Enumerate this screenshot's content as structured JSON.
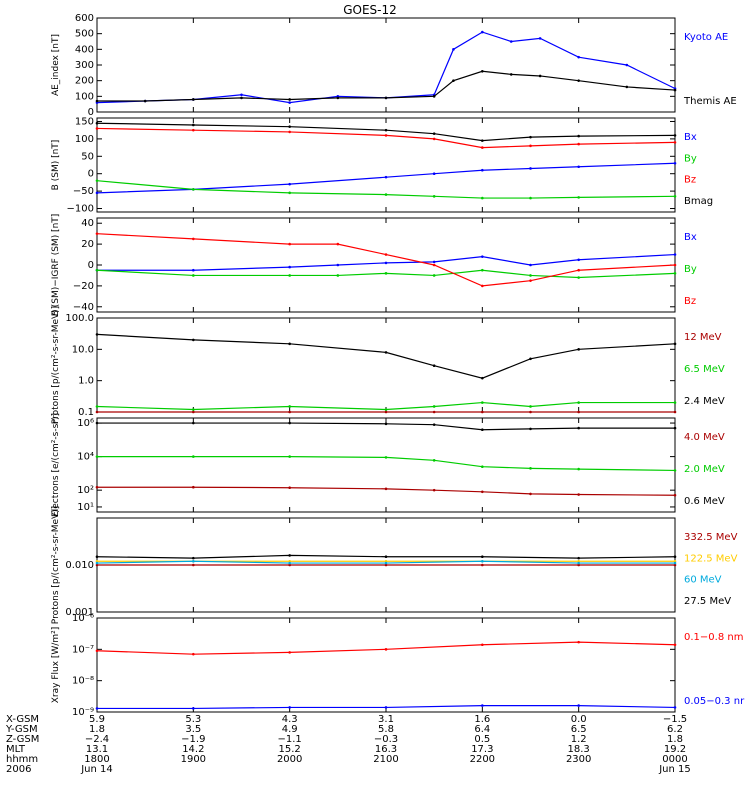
{
  "title": "GOES-12",
  "colors": {
    "blue": "#0000ff",
    "black": "#000000",
    "red": "#ff0000",
    "green": "#00cc00",
    "darkred": "#aa0000",
    "cyan": "#00aadd",
    "yellow": "#ffcc00"
  },
  "chart_data": [
    {
      "type": "line",
      "ylabel": "AE_index [nT]",
      "ylim": [
        0,
        600
      ],
      "yticks": [
        "600",
        "500",
        "400",
        "300",
        "200",
        "100",
        "0"
      ],
      "ytick_values": [
        600,
        500,
        400,
        300,
        200,
        100,
        0
      ],
      "x": [
        0,
        0.5,
        1,
        1.5,
        2,
        2.5,
        3,
        3.5,
        3.7,
        4,
        4.3,
        4.6,
        5,
        5.5,
        6
      ],
      "series": [
        {
          "name": "Kyoto AE",
          "color": "blue",
          "values": [
            60,
            70,
            80,
            110,
            60,
            100,
            90,
            110,
            400,
            510,
            450,
            470,
            350,
            300,
            150
          ]
        },
        {
          "name": "Themis AE",
          "color": "black",
          "values": [
            70,
            70,
            80,
            90,
            80,
            90,
            90,
            100,
            200,
            260,
            240,
            230,
            200,
            160,
            140
          ]
        }
      ]
    },
    {
      "type": "line",
      "ylabel": "B (SM) [nT]",
      "ylim": [
        -110,
        160
      ],
      "yticks": [
        "150",
        "100",
        "50",
        "0",
        "−50",
        "−100"
      ],
      "ytick_values": [
        150,
        100,
        50,
        0,
        -50,
        -100
      ],
      "x": [
        0,
        1,
        2,
        3,
        3.5,
        4,
        4.5,
        5,
        6
      ],
      "series": [
        {
          "name": "Bx",
          "color": "blue",
          "values": [
            -55,
            -45,
            -30,
            -10,
            0,
            10,
            15,
            20,
            30
          ]
        },
        {
          "name": "By",
          "color": "green",
          "values": [
            -20,
            -45,
            -55,
            -60,
            -65,
            -70,
            -70,
            -68,
            -65
          ]
        },
        {
          "name": "Bz",
          "color": "red",
          "values": [
            130,
            125,
            120,
            110,
            100,
            75,
            80,
            85,
            90
          ]
        },
        {
          "name": "Bmag",
          "color": "black",
          "values": [
            145,
            140,
            135,
            125,
            115,
            95,
            105,
            108,
            110
          ]
        }
      ]
    },
    {
      "type": "line",
      "ylabel": "B (SM)−IGRF (SM) [nT]",
      "ylim": [
        -45,
        45
      ],
      "yticks": [
        "40",
        "20",
        "0",
        "−20",
        "−40"
      ],
      "ytick_values": [
        40,
        20,
        0,
        -20,
        -40
      ],
      "x": [
        0,
        1,
        2,
        2.5,
        3,
        3.5,
        4,
        4.5,
        5,
        6
      ],
      "series": [
        {
          "name": "Bx",
          "color": "blue",
          "values": [
            -5,
            -5,
            -2,
            0,
            2,
            3,
            8,
            0,
            5,
            10
          ]
        },
        {
          "name": "By",
          "color": "green",
          "values": [
            -5,
            -10,
            -10,
            -10,
            -8,
            -10,
            -5,
            -10,
            -12,
            -8
          ]
        },
        {
          "name": "Bz",
          "color": "red",
          "values": [
            30,
            25,
            20,
            20,
            10,
            0,
            -20,
            -15,
            -5,
            0
          ]
        }
      ]
    },
    {
      "type": "line",
      "ylabel": "Protons [p/(cm²-s-sr-MeV)]",
      "scale": "log",
      "ylim": [
        0.1,
        100
      ],
      "yticks": [
        "100.0",
        "10.0",
        "1.0",
        "0.1"
      ],
      "ytick_values": [
        100,
        10,
        1,
        0.1
      ],
      "x": [
        0,
        1,
        2,
        3,
        3.5,
        4,
        4.5,
        5,
        6
      ],
      "series": [
        {
          "name": "12 MeV",
          "color": "darkred",
          "values": [
            0.1,
            0.1,
            0.1,
            0.1,
            0.1,
            0.1,
            0.1,
            0.1,
            0.1
          ]
        },
        {
          "name": "6.5 MeV",
          "color": "green",
          "values": [
            0.15,
            0.12,
            0.15,
            0.12,
            0.15,
            0.2,
            0.15,
            0.2,
            0.2
          ]
        },
        {
          "name": "2.4 MeV",
          "color": "black",
          "values": [
            30,
            20,
            15,
            8,
            3,
            1.2,
            5,
            10,
            15
          ]
        }
      ]
    },
    {
      "type": "line",
      "ylabel": "Electrons [e/(cm²-s-sr)]",
      "scale": "log",
      "ylim": [
        5,
        2000000
      ],
      "yticks": [
        "10⁶",
        "10⁴",
        "10²",
        "10¹"
      ],
      "ytick_values": [
        1000000,
        10000,
        100,
        10
      ],
      "x": [
        0,
        1,
        2,
        3,
        3.5,
        4,
        4.5,
        5,
        6
      ],
      "series": [
        {
          "name": "4.0 MeV",
          "color": "darkred",
          "values": [
            150,
            150,
            140,
            120,
            100,
            80,
            60,
            55,
            50
          ]
        },
        {
          "name": "2.0 MeV",
          "color": "green",
          "values": [
            10000,
            10000,
            10000,
            9000,
            6000,
            2500,
            2000,
            1800,
            1500
          ]
        },
        {
          "name": "0.6 MeV",
          "color": "black",
          "values": [
            1000000,
            1000000,
            1000000,
            900000,
            800000,
            400000,
            450000,
            500000,
            500000
          ]
        }
      ]
    },
    {
      "type": "line",
      "ylabel": "Protons [p/(cm²-s-sr-MeV)]",
      "scale": "log",
      "ylim": [
        0.001,
        0.1
      ],
      "yticks": [
        "0.010",
        "0.001"
      ],
      "ytick_values": [
        0.01,
        0.001
      ],
      "x": [
        0,
        1,
        2,
        3,
        4,
        5,
        6
      ],
      "series": [
        {
          "name": "332.5 MeV",
          "color": "darkred",
          "values": [
            0.01,
            0.01,
            0.01,
            0.01,
            0.01,
            0.01,
            0.01
          ]
        },
        {
          "name": "122.5 MeV",
          "color": "yellow",
          "values": [
            0.012,
            0.012,
            0.012,
            0.012,
            0.012,
            0.012,
            0.012
          ]
        },
        {
          "name": "60 MeV",
          "color": "cyan",
          "values": [
            0.011,
            0.012,
            0.011,
            0.011,
            0.012,
            0.011,
            0.011
          ]
        },
        {
          "name": "27.5 MeV",
          "color": "black",
          "values": [
            0.015,
            0.014,
            0.016,
            0.015,
            0.015,
            0.014,
            0.015
          ]
        }
      ]
    },
    {
      "type": "line",
      "ylabel": "Xray Flux [W/m²]",
      "scale": "log",
      "ylim": [
        1e-09,
        1e-06
      ],
      "yticks": [
        "10⁻⁶",
        "10⁻⁷",
        "10⁻⁸",
        "10⁻⁹"
      ],
      "ytick_values": [
        1e-06,
        1e-07,
        1e-08,
        1e-09
      ],
      "x": [
        0,
        1,
        2,
        3,
        4,
        5,
        6
      ],
      "series": [
        {
          "name": "0.1−0.8 nm",
          "color": "red",
          "values": [
            9e-08,
            7e-08,
            8e-08,
            1e-07,
            1.4e-07,
            1.7e-07,
            1.4e-07
          ]
        },
        {
          "name": "0.05−0.3 nr",
          "color": "blue",
          "values": [
            1.3e-09,
            1.3e-09,
            1.4e-09,
            1.4e-09,
            1.6e-09,
            1.6e-09,
            1.4e-09
          ]
        }
      ]
    }
  ],
  "footer": {
    "rows": [
      {
        "label": "X-GSM",
        "values": [
          "5.9",
          "5.3",
          "4.3",
          "3.1",
          "1.6",
          "0.0",
          "−1.5"
        ]
      },
      {
        "label": "Y-GSM",
        "values": [
          "1.8",
          "3.5",
          "4.9",
          "5.8",
          "6.4",
          "6.5",
          "6.2"
        ]
      },
      {
        "label": "Z-GSM",
        "values": [
          "−2.4",
          "−1.9",
          "−1.1",
          "−0.3",
          "0.5",
          "1.2",
          "1.8"
        ]
      },
      {
        "label": "MLT",
        "values": [
          "13.1",
          "14.2",
          "15.2",
          "16.3",
          "17.3",
          "18.3",
          "19.2"
        ]
      },
      {
        "label": "hhmm",
        "values": [
          "1800",
          "1900",
          "2000",
          "2100",
          "2200",
          "2300",
          "0000"
        ]
      },
      {
        "label": "2006",
        "values": [
          "Jun 14",
          "",
          "",
          "",
          "",
          "",
          "Jun 15"
        ]
      }
    ]
  }
}
